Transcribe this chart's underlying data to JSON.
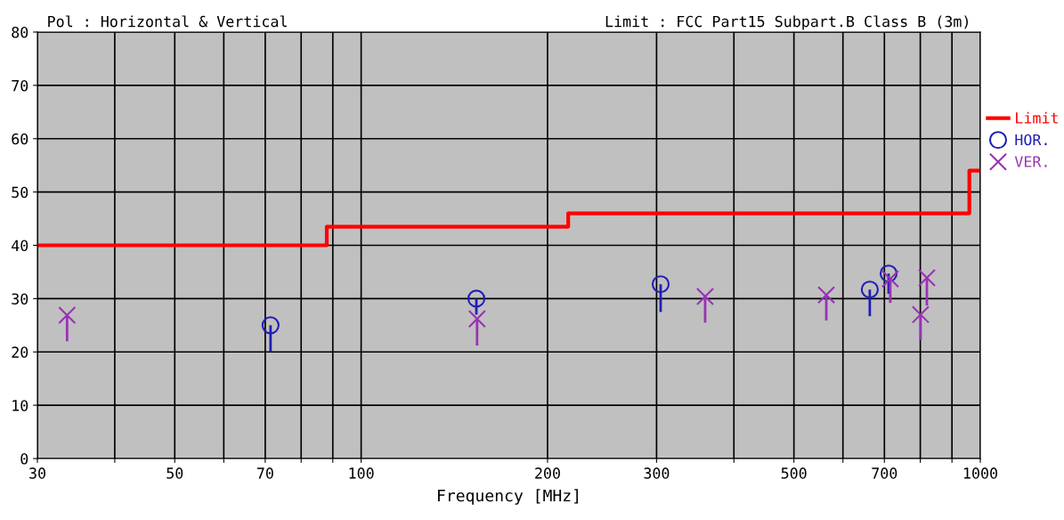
{
  "chart_data": {
    "type": "scatter",
    "xlabel": "Frequency [MHz]",
    "annotations": [
      "Pol : Horizontal & Vertical",
      "Limit : FCC Part15 Subpart.B Class B (3m)"
    ],
    "log": "x",
    "xlim": [
      30,
      1000
    ],
    "xticks": [
      30,
      {
        "value": 40,
        "label": null
      },
      50,
      {
        "value": 60,
        "label": null
      },
      70,
      {
        "value": 80,
        "label": null
      },
      {
        "value": 90,
        "label": null
      },
      100,
      200,
      300,
      {
        "value": 400,
        "label": null
      },
      500,
      {
        "value": 600,
        "label": null
      },
      700,
      {
        "value": 800,
        "label": null
      },
      {
        "value": 900,
        "label": null
      },
      1000
    ],
    "ylim": [
      0,
      80
    ],
    "yticks": [
      0,
      10,
      20,
      30,
      40,
      50,
      60,
      70,
      80
    ],
    "grid": true,
    "legend": "right",
    "series": [
      {
        "name": "Limit",
        "type": "step",
        "color": "#ff0000",
        "x": [
          30,
          88,
          216,
          960,
          1000
        ],
        "values": [
          40,
          43.5,
          46,
          54,
          54
        ]
      },
      {
        "name": "HOR.",
        "marker": "circle",
        "color": "#1f1fb4",
        "x": [
          71.4,
          153.5,
          304.6,
          663,
          711
        ],
        "values": [
          25.0,
          30.0,
          32.7,
          31.7,
          34.7
        ],
        "errors": [
          [
            20.0,
            25.0
          ],
          [
            27.0,
            30.0
          ],
          [
            27.5,
            32.7
          ],
          [
            26.7,
            31.7
          ],
          [
            30.9,
            34.7
          ]
        ]
      },
      {
        "name": "VER.",
        "marker": "cross",
        "color": "#9932b4",
        "x": [
          33.5,
          153.9,
          359.4,
          564,
          715.5,
          800.9,
          819.8
        ],
        "values": [
          26.9,
          26.2,
          30.4,
          30.7,
          33.7,
          27.0,
          33.9
        ],
        "errors": [
          [
            22.0,
            26.9
          ],
          [
            21.2,
            26.2
          ],
          [
            25.5,
            30.4
          ],
          [
            25.9,
            30.7
          ],
          [
            29.2,
            33.7
          ],
          [
            22.2,
            27.0
          ],
          [
            28.7,
            33.9
          ]
        ]
      }
    ]
  }
}
